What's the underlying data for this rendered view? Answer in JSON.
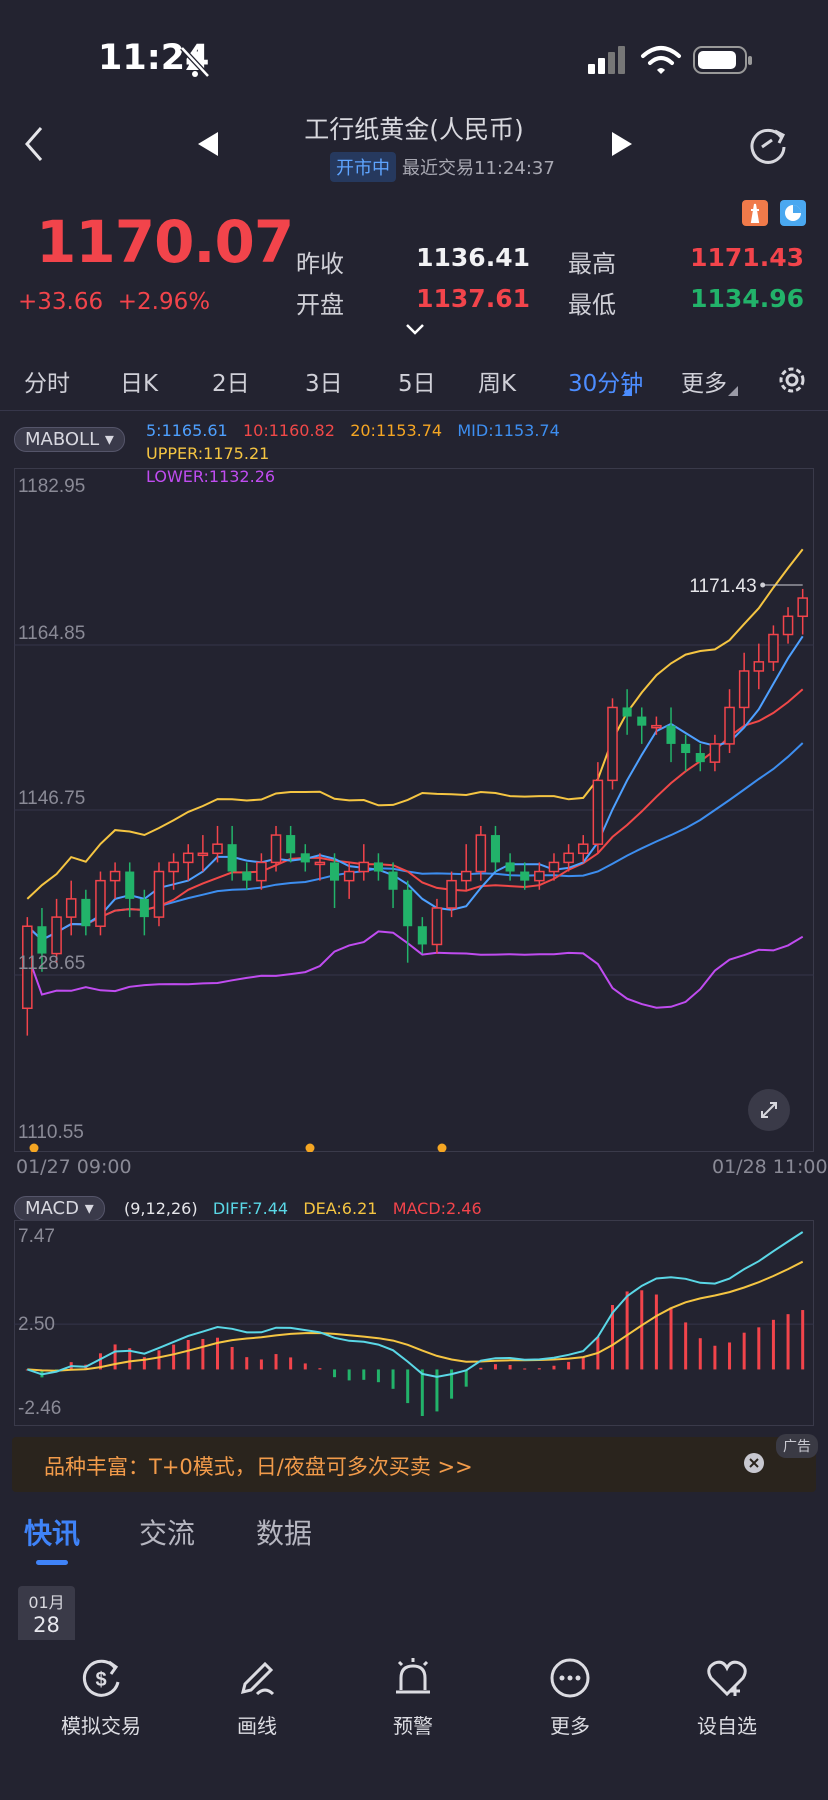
{
  "status_bar": {
    "time": "11:24"
  },
  "header": {
    "title": "工行纸黄金(人民币)",
    "market_status": "开市中",
    "last_trade": "最近交易11:24:37"
  },
  "quote": {
    "price": "1170.07",
    "change": "+33.66",
    "change_pct": "+2.96%",
    "prev_close_label": "昨收",
    "prev_close": "1136.41",
    "open_label": "开盘",
    "open": "1137.61",
    "high_label": "最高",
    "high": "1171.43",
    "low_label": "最低",
    "low": "1134.96"
  },
  "tabs": [
    {
      "label": "分时"
    },
    {
      "label": "日K"
    },
    {
      "label": "2日"
    },
    {
      "label": "3日"
    },
    {
      "label": "5日"
    },
    {
      "label": "周K"
    },
    {
      "label": "30分钟"
    },
    {
      "label": "更多"
    }
  ],
  "active_tab": "30分钟",
  "colors": {
    "up": "#f2444b",
    "down": "#22b36a",
    "accent": "#4c8dff",
    "ma5": "#4ea0ff",
    "ma10": "#f04848",
    "ma20": "#f5a623",
    "boll_mid": "#3d8ef0",
    "boll_upper": "#f5c542",
    "boll_lower": "#c04cf0",
    "diff": "#5ad7e6",
    "dea": "#f5c542"
  },
  "main_indicator": {
    "name": "MABOLL",
    "ma5": "5:1165.61",
    "ma10": "10:1160.82",
    "ma20": "20:1153.74",
    "mid": "MID:1153.74",
    "upper": "UPPER:1175.21",
    "lower": "LOWER:1132.26"
  },
  "macd_indicator": {
    "name": "MACD",
    "params": "(9,12,26)",
    "diff": "DIFF:7.44",
    "dea": "DEA:6.21",
    "macd": "MACD:2.46"
  },
  "chart_data": [
    {
      "type": "candlestick",
      "y_ticks": [
        "1182.95",
        "1164.85",
        "1146.75",
        "1128.65",
        "1110.55"
      ],
      "ylim": [
        1110.55,
        1182.95
      ],
      "x_labels": [
        "01/27 09:00",
        "01/28 11:00"
      ],
      "high_marker": "1171.43",
      "candles": [
        [
          1125,
          1135,
          1122,
          1134
        ],
        [
          1134,
          1136,
          1129,
          1131
        ],
        [
          1131,
          1137,
          1130,
          1135
        ],
        [
          1135,
          1139,
          1133,
          1137
        ],
        [
          1137,
          1138,
          1133,
          1134
        ],
        [
          1134,
          1140,
          1133,
          1139
        ],
        [
          1139,
          1141,
          1137,
          1140
        ],
        [
          1140,
          1141,
          1135,
          1137
        ],
        [
          1137,
          1138,
          1133,
          1135
        ],
        [
          1135,
          1141,
          1134,
          1140
        ],
        [
          1140,
          1142,
          1138,
          1141
        ],
        [
          1141,
          1143,
          1139,
          1142
        ],
        [
          1142,
          1144,
          1140,
          1142
        ],
        [
          1142,
          1145,
          1141,
          1143
        ],
        [
          1143,
          1145,
          1139,
          1140
        ],
        [
          1140,
          1141,
          1138,
          1139
        ],
        [
          1139,
          1142,
          1138,
          1141
        ],
        [
          1141,
          1145,
          1140,
          1144
        ],
        [
          1144,
          1145,
          1141,
          1142
        ],
        [
          1142,
          1143,
          1140,
          1141
        ],
        [
          1141,
          1142,
          1139,
          1141
        ],
        [
          1141,
          1142,
          1136,
          1139
        ],
        [
          1139,
          1141,
          1137,
          1140
        ],
        [
          1140,
          1143,
          1139,
          1141
        ],
        [
          1141,
          1142,
          1139,
          1140
        ],
        [
          1140,
          1141,
          1136,
          1138
        ],
        [
          1138,
          1139,
          1130,
          1134
        ],
        [
          1134,
          1135,
          1131,
          1132
        ],
        [
          1132,
          1137,
          1131,
          1136
        ],
        [
          1136,
          1140,
          1135,
          1139
        ],
        [
          1139,
          1143,
          1138,
          1140
        ],
        [
          1140,
          1145,
          1139,
          1144
        ],
        [
          1144,
          1145,
          1140,
          1141
        ],
        [
          1141,
          1142,
          1139,
          1140
        ],
        [
          1140,
          1141,
          1138,
          1139
        ],
        [
          1139,
          1141,
          1138,
          1140
        ],
        [
          1140,
          1142,
          1139,
          1141
        ],
        [
          1141,
          1143,
          1140,
          1142
        ],
        [
          1142,
          1144,
          1141,
          1143
        ],
        [
          1143,
          1152,
          1142,
          1150
        ],
        [
          1150,
          1159,
          1149,
          1158
        ],
        [
          1158,
          1160,
          1155,
          1157
        ],
        [
          1157,
          1158,
          1154,
          1156
        ],
        [
          1156,
          1157,
          1155,
          1156
        ],
        [
          1156,
          1158,
          1152,
          1154
        ],
        [
          1154,
          1155,
          1151,
          1153
        ],
        [
          1153,
          1154,
          1151,
          1152
        ],
        [
          1152,
          1155,
          1151,
          1154
        ],
        [
          1154,
          1160,
          1153,
          1158
        ],
        [
          1158,
          1164,
          1156,
          1162
        ],
        [
          1162,
          1165,
          1160,
          1163
        ],
        [
          1163,
          1167,
          1162,
          1166
        ],
        [
          1166,
          1169,
          1165,
          1168
        ],
        [
          1168,
          1171,
          1166,
          1170
        ]
      ]
    },
    {
      "type": "macd",
      "y_ticks": [
        "7.47",
        "2.50",
        "-2.46"
      ],
      "ylim": [
        -2.46,
        7.47
      ]
    }
  ],
  "ad": {
    "text": "品种丰富：T+0模式，日/夜盘可多次买卖 >>",
    "tag": "广告"
  },
  "news_tabs": [
    {
      "label": "快讯"
    },
    {
      "label": "交流"
    },
    {
      "label": "数据"
    }
  ],
  "news_date": {
    "month": "01月",
    "day": "28"
  },
  "bottom_nav": [
    {
      "label": "模拟交易",
      "icon": "dollar-refresh-icon"
    },
    {
      "label": "画线",
      "icon": "pen-icon"
    },
    {
      "label": "预警",
      "icon": "alarm-icon"
    },
    {
      "label": "更多",
      "icon": "more-icon"
    },
    {
      "label": "设自选",
      "icon": "heart-icon"
    }
  ]
}
